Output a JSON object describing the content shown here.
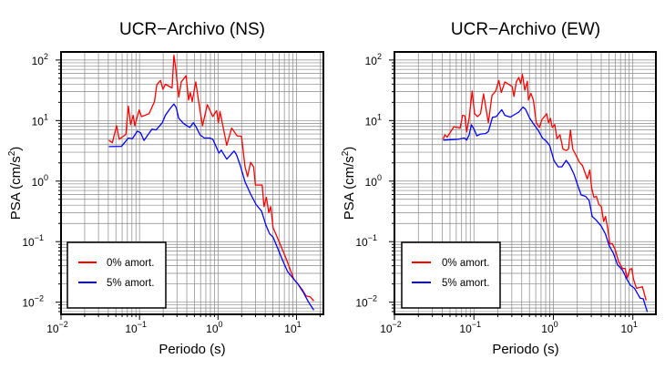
{
  "chart_data": [
    {
      "type": "line",
      "title": "UCR−Archivo (NS)",
      "xlabel": "Periodo (s)",
      "ylabel_main": "PSA (cm/s",
      "ylabel_sup": "2",
      "ylabel_end": ")",
      "xscale": "log",
      "yscale": "log",
      "xlim": [
        0.01,
        22
      ],
      "ylim": [
        0.0063,
        136
      ],
      "xticks": [
        0.01,
        0.1,
        1,
        10
      ],
      "yticks": [
        0.01,
        0.1,
        1,
        10,
        100
      ],
      "grid": true,
      "legend_position": "bottom-left",
      "series": [
        {
          "name": "0% amort.",
          "color": "#ff0000",
          "x": [
            0.0407,
            0.045,
            0.051,
            0.055,
            0.067,
            0.072,
            0.077,
            0.083,
            0.087,
            0.099,
            0.106,
            0.132,
            0.155,
            0.166,
            0.185,
            0.199,
            0.213,
            0.26,
            0.274,
            0.289,
            0.316,
            0.34,
            0.392,
            0.421,
            0.444,
            0.469,
            0.521,
            0.59,
            0.634,
            0.731,
            0.859,
            0.957,
            1.01,
            1.06,
            1.29,
            1.49,
            1.75,
            1.99,
            2.21,
            2.38,
            2.6,
            2.84,
            3.0,
            3.65,
            3.85,
            4.13,
            4.44,
            4.69,
            5.03,
            6.01,
            7.31,
            9.22,
            10.4,
            11.9,
            13.2,
            14.9,
            16.6
          ],
          "y": [
            4.75,
            4.3,
            8.2,
            4.9,
            5.9,
            17.3,
            8.6,
            12.2,
            8.2,
            15,
            11.6,
            13,
            20.6,
            38.8,
            46,
            32.7,
            39.7,
            34.6,
            120,
            73,
            24.4,
            43.5,
            54.8,
            21.8,
            29.1,
            20.6,
            43.5,
            14.6,
            8.2,
            18.3,
            11.6,
            14.6,
            9.2,
            14.1,
            3.9,
            7.5,
            5.6,
            5.5,
            1.72,
            1.19,
            2.05,
            1.72,
            0.86,
            0.86,
            0.38,
            0.54,
            0.3,
            0.38,
            0.17,
            0.1,
            0.054,
            0.024,
            0.02,
            0.016,
            0.0127,
            0.0123,
            0.0105
          ]
        },
        {
          "name": "5% amort.",
          "color": "#0000ff",
          "x": [
            0.0407,
            0.059,
            0.072,
            0.081,
            0.094,
            0.103,
            0.114,
            0.144,
            0.163,
            0.195,
            0.213,
            0.242,
            0.274,
            0.294,
            0.316,
            0.365,
            0.437,
            0.485,
            0.531,
            0.59,
            0.67,
            0.785,
            0.859,
            1.03,
            1.1,
            1.29,
            1.6,
            1.72,
            1.92,
            2.21,
            2.6,
            3.05,
            3.58,
            4.06,
            4.52,
            5.03,
            5.8,
            6.7,
            7.7,
            9.22,
            10.4,
            12.3,
            14.2,
            16.6
          ],
          "y": [
            3.72,
            3.75,
            5.15,
            5.0,
            6.7,
            6.3,
            4.7,
            7.2,
            7.0,
            9.2,
            12.2,
            15.4,
            18.8,
            16.3,
            10.9,
            8.9,
            7.7,
            9.2,
            7.7,
            5.8,
            5.15,
            5.15,
            4.9,
            2.9,
            3.24,
            2.3,
            3.13,
            2.73,
            1.82,
            0.97,
            0.61,
            0.41,
            0.32,
            0.19,
            0.136,
            0.118,
            0.076,
            0.048,
            0.032,
            0.024,
            0.02,
            0.0143,
            0.0101,
            0.0074
          ]
        }
      ]
    },
    {
      "type": "line",
      "title": "UCR−Archivo (EW)",
      "xlabel": "Periodo (s)",
      "ylabel_main": "PSA (cm/s",
      "ylabel_sup": "2",
      "ylabel_end": ")",
      "xscale": "log",
      "yscale": "log",
      "xlim": [
        0.01,
        19.5
      ],
      "ylim": [
        0.0063,
        136
      ],
      "xticks": [
        0.01,
        0.1,
        1,
        10
      ],
      "yticks": [
        0.01,
        0.1,
        1,
        10,
        100
      ],
      "grid": true,
      "legend_position": "bottom-left",
      "series": [
        {
          "name": "0% amort.",
          "color": "#ff0000",
          "x": [
            0.041,
            0.043,
            0.046,
            0.056,
            0.067,
            0.072,
            0.077,
            0.081,
            0.087,
            0.095,
            0.102,
            0.111,
            0.121,
            0.132,
            0.152,
            0.169,
            0.188,
            0.206,
            0.221,
            0.245,
            0.303,
            0.319,
            0.342,
            0.367,
            0.387,
            0.408,
            0.437,
            0.47,
            0.486,
            0.522,
            0.56,
            0.61,
            0.667,
            0.716,
            0.824,
            0.869,
            0.917,
            0.966,
            1.04,
            1.11,
            1.21,
            1.32,
            1.45,
            1.55,
            1.64,
            1.75,
            1.95,
            2.13,
            2.32,
            2.67,
            2.87,
            3.03,
            3.24,
            3.48,
            3.74,
            4.01,
            4.3,
            4.53,
            4.86,
            5.13,
            5.5,
            6.0,
            6.6,
            7.4,
            8.0,
            8.5,
            9.2,
            9.7,
            10.2,
            11.1,
            13.2,
            14.7
          ],
          "y": [
            4.9,
            5.8,
            5.3,
            7.9,
            7.5,
            12.2,
            12,
            6.5,
            10.9,
            30.8,
            13,
            11.6,
            13,
            27.5,
            9.2,
            26,
            30.8,
            46,
            29.1,
            43.5,
            36.6,
            25,
            43.5,
            51.8,
            41,
            58,
            31.6,
            44.6,
            21.8,
            28.1,
            21.8,
            9.2,
            7.7,
            10.3,
            13,
            9.2,
            10.9,
            7.7,
            8.6,
            5.0,
            5.8,
            3.4,
            3.2,
            3.4,
            7.0,
            3.4,
            2.58,
            2.05,
            1.82,
            1.08,
            1.53,
            0.77,
            0.54,
            0.56,
            0.41,
            0.38,
            0.215,
            0.26,
            0.156,
            0.091,
            0.093,
            0.074,
            0.047,
            0.036,
            0.036,
            0.025,
            0.035,
            0.036,
            0.024,
            0.017,
            0.018,
            0.0107
          ]
        },
        {
          "name": "5% amort.",
          "color": "#0000ff",
          "x": [
            0.041,
            0.063,
            0.076,
            0.081,
            0.087,
            0.093,
            0.1,
            0.109,
            0.121,
            0.14,
            0.152,
            0.171,
            0.191,
            0.224,
            0.245,
            0.287,
            0.367,
            0.415,
            0.446,
            0.504,
            0.57,
            0.644,
            0.73,
            0.81,
            0.9,
            1.02,
            1.15,
            1.28,
            1.45,
            1.61,
            1.82,
            2.02,
            2.24,
            2.54,
            2.82,
            3.08,
            3.42,
            4.01,
            4.53,
            5.03,
            5.7,
            6.4,
            7.4,
            8.4,
            9.3,
            10.5,
            12.4,
            13.5,
            15.2
          ],
          "y": [
            4.75,
            4.9,
            5.15,
            4.75,
            5.8,
            8.5,
            7.3,
            5.6,
            6.0,
            6.1,
            6.6,
            11.3,
            11.6,
            15.1,
            12.2,
            11.4,
            13.8,
            16.7,
            15.4,
            10.9,
            8.6,
            6.9,
            5.15,
            4.6,
            3.85,
            2.17,
            1.72,
            1.72,
            2.2,
            1.82,
            1.29,
            0.86,
            0.59,
            0.56,
            0.48,
            0.26,
            0.23,
            0.18,
            0.133,
            0.086,
            0.064,
            0.042,
            0.034,
            0.024,
            0.019,
            0.017,
            0.0116,
            0.0114,
            0.0069
          ]
        }
      ]
    }
  ]
}
